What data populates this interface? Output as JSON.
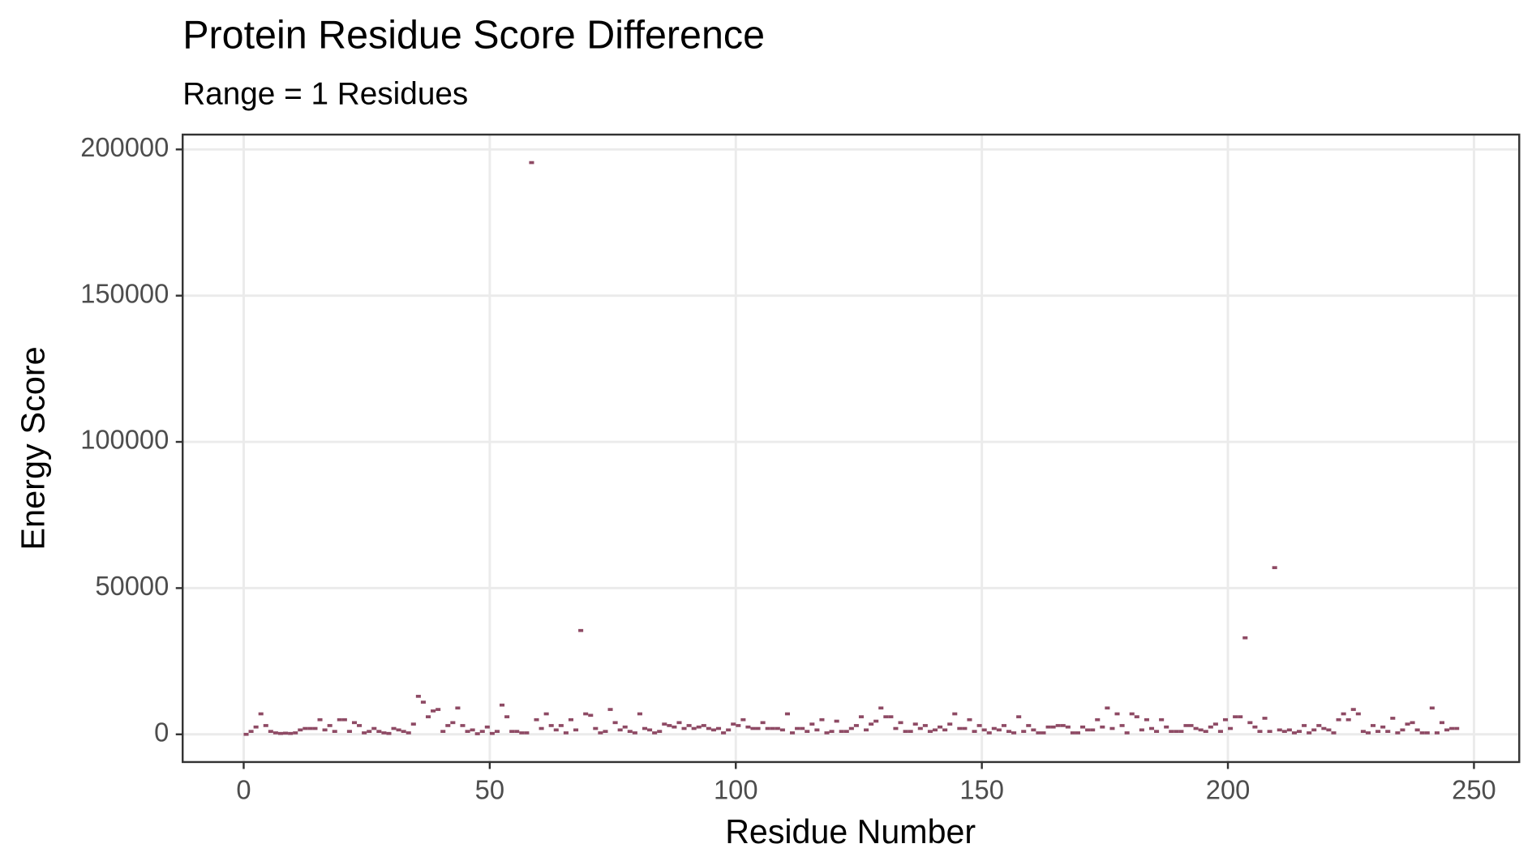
{
  "chart_data": {
    "type": "scatter",
    "title": "Protein Residue Score Difference",
    "subtitle": "Range = 1 Residues",
    "x_label": "Residue Number",
    "y_label": "Energy Score",
    "color": "#8e4a64",
    "grid": true,
    "xlim": [
      -12.4,
      259.2
    ],
    "ylim": [
      -9475,
      205075
    ],
    "xticks": [
      0,
      50,
      100,
      150,
      200,
      250
    ],
    "yticks": [
      0,
      50000,
      100000,
      150000,
      200000
    ],
    "x": [
      0,
      1,
      2,
      3,
      4,
      5,
      6,
      7,
      8,
      9,
      10,
      11,
      12,
      13,
      14,
      15,
      16,
      17,
      18,
      19,
      20,
      21,
      22,
      23,
      24,
      25,
      26,
      27,
      28,
      29,
      30,
      31,
      32,
      33,
      34,
      35,
      36,
      37,
      38,
      39,
      40,
      41,
      42,
      43,
      44,
      45,
      46,
      47,
      48,
      49,
      50,
      51,
      52,
      53,
      54,
      55,
      56,
      57,
      58,
      59,
      60,
      61,
      62,
      63,
      64,
      65,
      66,
      67,
      68,
      69,
      70,
      71,
      72,
      73,
      74,
      75,
      76,
      77,
      78,
      79,
      80,
      81,
      82,
      83,
      84,
      85,
      86,
      87,
      88,
      89,
      90,
      91,
      92,
      93,
      94,
      95,
      96,
      97,
      98,
      99,
      100,
      101,
      102,
      103,
      104,
      105,
      106,
      107,
      108,
      109,
      110,
      111,
      112,
      113,
      114,
      115,
      116,
      117,
      118,
      119,
      120,
      121,
      122,
      123,
      124,
      125,
      126,
      127,
      128,
      129,
      130,
      131,
      132,
      133,
      134,
      135,
      136,
      137,
      138,
      139,
      140,
      141,
      142,
      143,
      144,
      145,
      146,
      147,
      148,
      149,
      150,
      151,
      152,
      153,
      154,
      155,
      156,
      157,
      158,
      159,
      160,
      161,
      162,
      163,
      164,
      165,
      166,
      167,
      168,
      169,
      170,
      171,
      172,
      173,
      174,
      175,
      176,
      177,
      178,
      179,
      180,
      181,
      182,
      183,
      184,
      185,
      186,
      187,
      188,
      189,
      190,
      191,
      192,
      193,
      194,
      195,
      196,
      197,
      198,
      199,
      200,
      201,
      202,
      203,
      204,
      205,
      206,
      207,
      208,
      209,
      210,
      211,
      212,
      213,
      214,
      215,
      216,
      217,
      218,
      219,
      220,
      221,
      222,
      223,
      224,
      225,
      226,
      227,
      228,
      229,
      230,
      231,
      232,
      233,
      234,
      235,
      236,
      237,
      238,
      239,
      240,
      241,
      242,
      243,
      244,
      245,
      246
    ],
    "values": [
      0,
      1000,
      2500,
      7000,
      3000,
      1000,
      500,
      300,
      400,
      300,
      500,
      1500,
      2000,
      2000,
      2000,
      5000,
      1500,
      3000,
      1000,
      5000,
      5000,
      1000,
      4000,
      3000,
      500,
      1000,
      2000,
      1000,
      500,
      300,
      2000,
      1500,
      1000,
      500,
      3500,
      13000,
      11000,
      6000,
      8000,
      8500,
      1000,
      3000,
      4000,
      9000,
      3000,
      1000,
      1500,
      200,
      1000,
      2500,
      300,
      1000,
      10000,
      6000,
      1000,
      1000,
      500,
      500,
      195500,
      5000,
      2000,
      7000,
      3000,
      1500,
      3000,
      500,
      5000,
      1500,
      35500,
      7000,
      6500,
      2000,
      500,
      1000,
      8500,
      4000,
      1500,
      2500,
      1000,
      500,
      7000,
      2000,
      1500,
      500,
      1000,
      3500,
      3000,
      2500,
      4000,
      2000,
      3000,
      2000,
      2500,
      3000,
      2000,
      1500,
      2000,
      500,
      1500,
      3500,
      3000,
      5000,
      2500,
      2000,
      2000,
      4000,
      2000,
      2000,
      2000,
      1500,
      7000,
      500,
      2000,
      2000,
      1000,
      3500,
      1500,
      5000,
      500,
      1000,
      4500,
      1000,
      1000,
      2000,
      3000,
      6000,
      1500,
      3500,
      4500,
      9000,
      6000,
      6000,
      2000,
      4000,
      1000,
      1000,
      3500,
      2000,
      3000,
      1000,
      1500,
      2500,
      1500,
      3500,
      7000,
      2000,
      2000,
      5000,
      1000,
      3000,
      1500,
      500,
      2000,
      1500,
      3000,
      1000,
      500,
      6000,
      1000,
      3000,
      1500,
      500,
      500,
      2500,
      2500,
      3000,
      3000,
      2500,
      500,
      500,
      2500,
      1500,
      1500,
      5000,
      2500,
      9000,
      2000,
      7000,
      3000,
      500,
      7000,
      6000,
      1500,
      5000,
      2000,
      1000,
      5000,
      2500,
      1000,
      1000,
      1000,
      3000,
      3000,
      2000,
      1500,
      1000,
      2500,
      3500,
      1000,
      5000,
      2000,
      6000,
      6000,
      33000,
      4000,
      2500,
      1000,
      5500,
      1000,
      57000,
      1500,
      1000,
      1500,
      500,
      1000,
      3000,
      500,
      1500,
      3000,
      2000,
      1500,
      500,
      5000,
      7000,
      5000,
      8500,
      7000,
      1000,
      500,
      3000,
      1000,
      2500,
      1000,
      5500,
      500,
      1500,
      3500,
      4000,
      1500,
      500,
      500,
      9000,
      500,
      4000,
      1500,
      2000,
      2000
    ]
  }
}
